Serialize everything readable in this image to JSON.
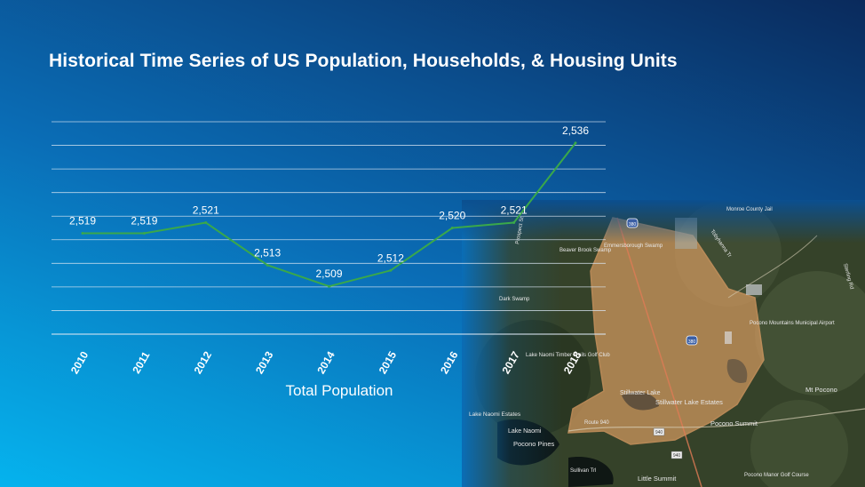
{
  "slide": {
    "title": "Historical Time Series of US Population, Households, & Housing Units"
  },
  "map": {
    "labels": [
      "Stillwater Lake",
      "Stillwater Lake Estates",
      "Pocono Summit",
      "Mt Pocono",
      "Pocono Pines",
      "Little Summit",
      "Lake Naomi",
      "Lake Naomi Estates",
      "Pocono Manor Golf Course",
      "Route 940",
      "Sullivan Trl",
      "Lake Naomi Timber Trails Golf Club",
      "Pocono Mountains Municipal Airport",
      "Sterling Rd",
      "Prospect St",
      "Dark Swamp",
      "Monroe County Jail",
      "Tobyhanna Tr",
      "Emmersborough Swamp",
      "Beaver Brook Swamp"
    ],
    "road_shields": [
      "380",
      "940"
    ]
  },
  "chart_data": {
    "type": "line",
    "categories": [
      "2010",
      "2011",
      "2012",
      "2013",
      "2014",
      "2015",
      "2016",
      "2017",
      "2018"
    ],
    "series": [
      {
        "values": [
          2519,
          2519,
          2521,
          2513,
          2509,
          2512,
          2520,
          2521,
          2536
        ],
        "data_labels": [
          "2,519",
          "2,519",
          "2,521",
          "2,513",
          "2,509",
          "2,512",
          "2,520",
          "2,521",
          "2,536"
        ],
        "color": "#3aa84a"
      }
    ],
    "xlabel": "Total Population",
    "ylabel": "",
    "ylim": [
      2500,
      2540
    ],
    "grid": true,
    "legend": "none",
    "colors": {
      "line": "#3aa84a",
      "grid": "#dbe7f3",
      "text": "#ffffff"
    }
  }
}
